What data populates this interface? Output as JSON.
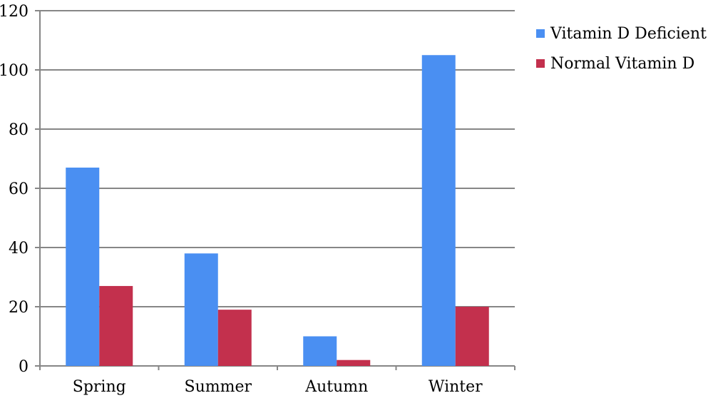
{
  "chart_data": {
    "type": "bar",
    "categories": [
      "Spring",
      "Summer",
      "Autumn",
      "Winter"
    ],
    "series": [
      {
        "name": "Vitamin D Deficient",
        "values": [
          67,
          38,
          10,
          105
        ],
        "color": "#4a8ff2"
      },
      {
        "name": "Normal Vitamin D",
        "values": [
          27,
          19,
          2,
          20
        ],
        "color": "#c3304d"
      }
    ],
    "y_ticks": [
      "0",
      "20",
      "40",
      "60",
      "80",
      "100",
      "120"
    ],
    "ylim": [
      0,
      120
    ],
    "grid": true,
    "legend_position": "right",
    "title": "",
    "xlabel": "",
    "ylabel": ""
  }
}
